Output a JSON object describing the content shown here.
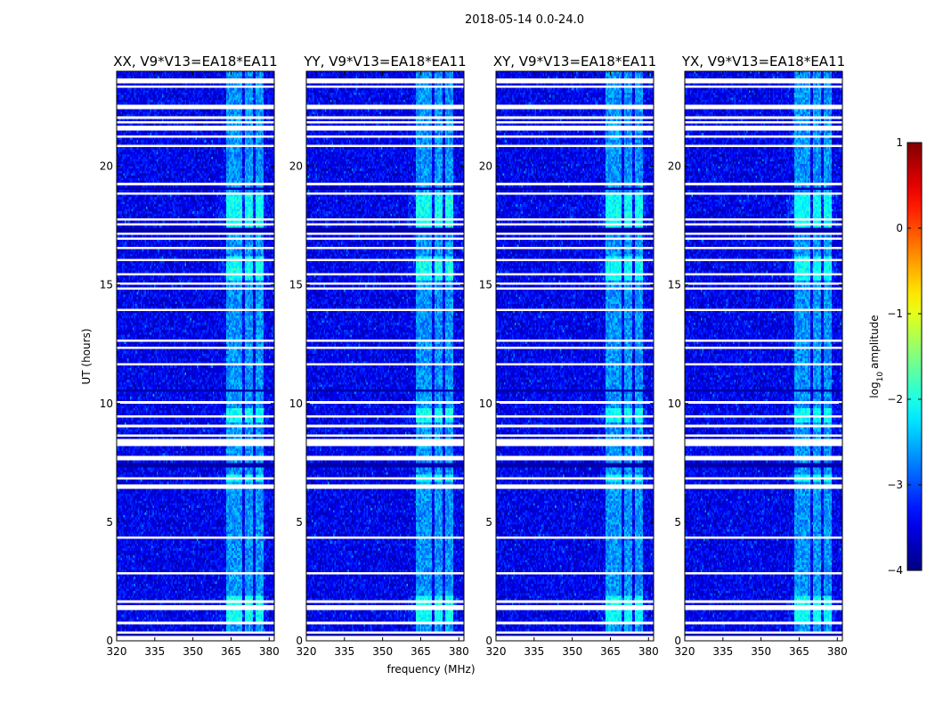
{
  "chart_data": {
    "type": "heatmap",
    "suptitle": "2018-05-14 0.0-24.0",
    "xlabel": "frequency (MHz)",
    "ylabel": "UT (hours)",
    "xlim": [
      320,
      382
    ],
    "ylim": [
      0,
      24
    ],
    "xticks": [
      320,
      335,
      350,
      365,
      380
    ],
    "yticks": [
      0,
      5,
      10,
      15,
      20
    ],
    "panels": [
      {
        "title": "XX, V9*V13=EA18*EA11",
        "pol": "XX"
      },
      {
        "title": "YY, V9*V13=EA18*EA11",
        "pol": "YY"
      },
      {
        "title": "XY, V9*V13=EA18*EA11",
        "pol": "XY"
      },
      {
        "title": "YX, V9*V13=EA18*EA11",
        "pol": "YX"
      }
    ],
    "colorbar": {
      "label": "log10 amplitude",
      "range": [
        -4,
        1
      ],
      "ticks": [
        "1",
        "0",
        "−1",
        "−2",
        "−3",
        "−4"
      ],
      "colormap": "jet"
    },
    "rfi_bands_mhz": [
      [
        363,
        366
      ],
      [
        366.5,
        369.5
      ],
      [
        370.5,
        373.5
      ],
      [
        374.5,
        378
      ]
    ],
    "rfi_strong_hours": [
      [
        0.8,
        1.9
      ],
      [
        6.7,
        7.0
      ],
      [
        9.2,
        9.8
      ],
      [
        15.2,
        16.2
      ],
      [
        17.4,
        18.8
      ]
    ],
    "flagged_hours": [
      [
        0.0,
        0.15
      ],
      [
        0.3,
        0.45
      ],
      [
        0.75,
        0.85
      ],
      [
        1.35,
        1.45
      ],
      [
        1.6,
        1.7
      ],
      [
        1.85,
        1.95
      ],
      [
        2.8,
        2.88
      ],
      [
        2.95,
        3.02
      ],
      [
        4.3,
        4.36
      ],
      [
        6.35,
        6.6
      ],
      [
        6.8,
        6.88
      ],
      [
        7.05,
        7.15
      ],
      [
        7.6,
        7.75
      ],
      [
        8.2,
        8.45
      ],
      [
        8.6,
        8.7
      ],
      [
        9.05,
        9.1
      ],
      [
        9.45,
        9.5
      ],
      [
        10.0,
        10.06
      ],
      [
        10.3,
        10.35
      ],
      [
        11.6,
        11.7
      ],
      [
        12.35,
        12.42
      ],
      [
        12.6,
        12.68
      ],
      [
        13.9,
        14.0
      ],
      [
        14.8,
        14.92
      ],
      [
        15.0,
        15.08
      ],
      [
        15.4,
        15.48
      ],
      [
        16.05,
        16.12
      ],
      [
        16.5,
        16.56
      ],
      [
        16.95,
        17.0
      ],
      [
        17.15,
        17.2
      ],
      [
        17.5,
        17.58
      ],
      [
        17.7,
        17.78
      ],
      [
        18.8,
        18.86
      ],
      [
        19.2,
        19.28
      ],
      [
        20.8,
        20.88
      ],
      [
        21.25,
        21.32
      ],
      [
        21.55,
        21.65
      ],
      [
        21.78,
        21.85
      ],
      [
        22.05,
        22.12
      ],
      [
        22.45,
        22.55
      ],
      [
        23.3,
        23.35
      ],
      [
        23.55,
        23.7
      ]
    ],
    "dark_bands_hours": [
      [
        0.15,
        0.3
      ],
      [
        7.3,
        7.55
      ],
      [
        9.15,
        9.22
      ],
      [
        17.25,
        17.45
      ],
      [
        10.55,
        10.6
      ],
      [
        19.05,
        19.12
      ]
    ]
  }
}
